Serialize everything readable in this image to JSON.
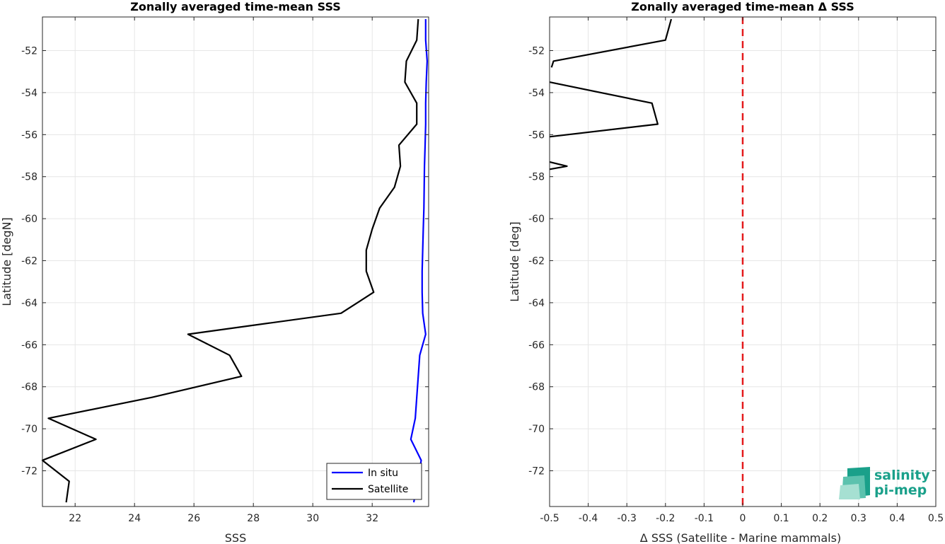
{
  "chart_data": [
    {
      "type": "line",
      "title": "Zonally averaged time-mean SSS",
      "xlabel": "SSS",
      "ylabel": "Latitude [degN]",
      "xlim": [
        20.9,
        33.9
      ],
      "ylim": [
        -73.7,
        -50.4
      ],
      "xticks": [
        22,
        24,
        26,
        28,
        30,
        32
      ],
      "yticks": [
        -52,
        -54,
        -56,
        -58,
        -60,
        -62,
        -64,
        -66,
        -68,
        -70,
        -72
      ],
      "grid": true,
      "legend": "bottom-right",
      "series": [
        {
          "name": "In situ",
          "color": "#0000ff",
          "x": [
            33.8,
            33.8,
            33.85,
            33.82,
            33.8,
            33.8,
            33.78,
            33.76,
            33.75,
            33.74,
            33.72,
            33.7,
            33.68,
            33.68,
            33.7,
            33.8,
            33.6,
            33.55,
            33.5,
            33.45,
            33.3,
            33.65,
            33.4
          ],
          "y": [
            -50.5,
            -51.5,
            -52.5,
            -53.5,
            -54.5,
            -55.5,
            -56.5,
            -57.5,
            -58.5,
            -59.5,
            -60.5,
            -61.5,
            -62.5,
            -63.5,
            -64.5,
            -65.5,
            -66.5,
            -67.5,
            -68.5,
            -69.5,
            -70.5,
            -71.5,
            -73.5
          ]
        },
        {
          "name": "Satellite",
          "color": "#000000",
          "x": [
            33.55,
            33.5,
            33.15,
            33.1,
            33.5,
            33.5,
            32.9,
            32.95,
            32.75,
            32.25,
            32.0,
            31.8,
            31.8,
            32.05,
            30.95,
            25.8,
            27.2,
            27.6,
            24.6,
            21.1,
            22.7,
            20.9,
            21.8,
            21.7
          ],
          "y": [
            -50.5,
            -51.5,
            -52.5,
            -53.5,
            -54.5,
            -55.5,
            -56.5,
            -57.5,
            -58.5,
            -59.5,
            -60.5,
            -61.5,
            -62.5,
            -63.5,
            -64.5,
            -65.5,
            -66.5,
            -67.5,
            -68.5,
            -69.5,
            -70.5,
            -71.5,
            -72.5,
            -73.5
          ]
        }
      ]
    },
    {
      "type": "line",
      "title": "Zonally averaged time-mean Δ SSS",
      "xlabel": "Δ SSS (Satellite - Marine mammals)",
      "ylabel": "Latitude [deg]",
      "xlim": [
        -0.5,
        0.5
      ],
      "ylim": [
        -73.7,
        -50.4
      ],
      "xticks": [
        -0.5,
        -0.4,
        -0.3,
        -0.2,
        -0.1,
        0,
        0.1,
        0.2,
        0.3,
        0.4,
        0.5
      ],
      "yticks": [
        -52,
        -54,
        -56,
        -58,
        -60,
        -62,
        -64,
        -66,
        -68,
        -70,
        -72
      ],
      "grid": true,
      "reference_line": {
        "x": 0,
        "color": "#e41a1c",
        "style": "dashed"
      },
      "series": [
        {
          "color": "#000000",
          "segments": [
            {
              "x": [
                -0.185,
                -0.2,
                -0.49,
                -0.495
              ],
              "y": [
                -50.5,
                -51.5,
                -52.5,
                -52.8
              ]
            },
            {
              "x": [
                -0.5,
                -0.235,
                -0.22,
                -0.5
              ],
              "y": [
                -53.5,
                -54.5,
                -55.5,
                -56.1
              ]
            },
            {
              "x": [
                -0.5,
                -0.455,
                -0.5
              ],
              "y": [
                -57.3,
                -57.5,
                -57.65
              ]
            }
          ]
        }
      ]
    }
  ],
  "logo": {
    "line1": "salinity",
    "line2": "pi-mep"
  }
}
